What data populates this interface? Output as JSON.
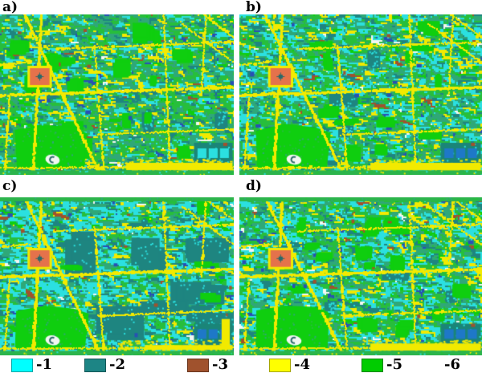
{
  "figure": {
    "panels": [
      {
        "label": "a)"
      },
      {
        "label": "b)"
      },
      {
        "label": "c)"
      },
      {
        "label": "d)"
      }
    ],
    "legend": {
      "items": [
        {
          "label": "-1",
          "color": "#00FFFF"
        },
        {
          "label": "-2",
          "color": "#1D8585"
        },
        {
          "label": "-3",
          "color": "#A0522D"
        },
        {
          "label": "-4",
          "color": "#FFFF00"
        },
        {
          "label": "-5",
          "color": "#00CC00"
        },
        {
          "label": "-6"
        }
      ]
    },
    "map_colors": {
      "cyan": "#2BE0E0",
      "teal": "#1E8580",
      "sea_green": "#2FA878",
      "green": "#27BE3C",
      "bright_green": "#0FCE0F",
      "yellow": "#F2EA00",
      "brown": "#A0522D",
      "white": "#F2F7F2",
      "dark_blue": "#2850B4",
      "water_blue": "#1E78C8",
      "landmark_orange": "#E5724B",
      "band_green": "#2CB44C",
      "pool_base_teal": "#1A8578",
      "blob_dark": "#2A6A6A"
    }
  }
}
